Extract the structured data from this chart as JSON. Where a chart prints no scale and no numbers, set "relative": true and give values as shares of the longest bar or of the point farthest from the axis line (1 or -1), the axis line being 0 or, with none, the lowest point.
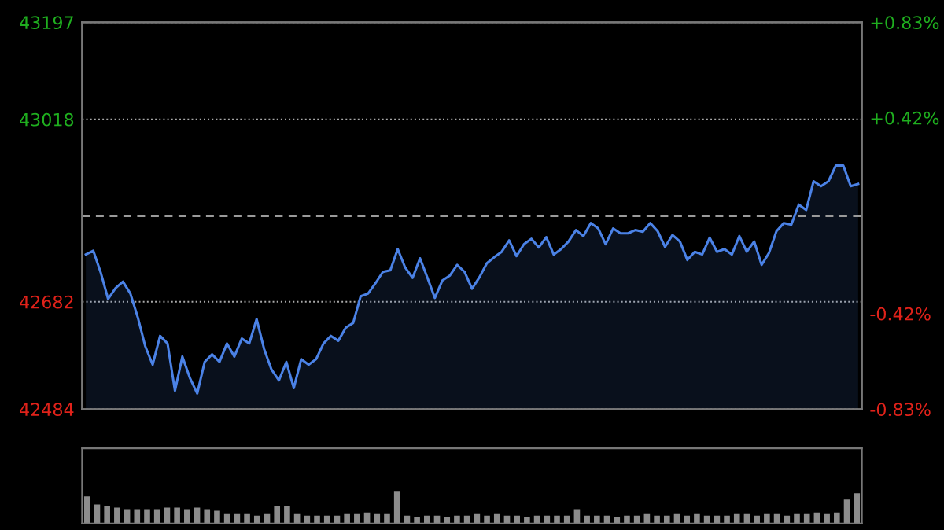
{
  "chart_data": [
    {
      "type": "area",
      "categories": [
        null,
        null,
        null,
        null,
        null,
        null,
        null,
        null,
        null,
        null,
        null,
        null,
        null,
        null,
        null,
        null,
        null,
        null,
        null,
        null,
        null,
        null,
        null,
        null,
        null,
        null,
        null,
        null,
        null,
        null,
        null,
        null,
        null,
        null,
        null,
        null,
        null,
        null,
        null,
        null,
        null,
        null,
        null,
        null,
        null,
        null,
        null,
        null,
        null,
        null,
        null,
        null,
        null,
        null,
        null,
        null,
        null,
        null,
        null,
        null,
        null,
        null,
        null,
        null,
        null,
        null,
        null,
        null,
        null,
        null,
        null,
        null,
        null,
        null,
        null,
        null,
        null,
        null,
        null,
        null,
        null,
        null,
        null,
        null,
        null,
        null,
        null,
        null,
        null,
        null,
        null,
        null,
        null,
        null,
        null,
        null,
        null,
        null,
        null,
        null,
        null,
        null,
        null,
        null,
        null
      ],
      "series": [
        {
          "color": "#4b82e6",
          "values": [
            42769,
            42776,
            42736,
            42687,
            42707,
            42719,
            42697,
            42653,
            42600,
            42566,
            42619,
            42605,
            42518,
            42581,
            42542,
            42513,
            42571,
            42585,
            42571,
            42605,
            42581,
            42614,
            42605,
            42650,
            42595,
            42557,
            42537,
            42571,
            42523,
            42576,
            42566,
            42576,
            42605,
            42619,
            42610,
            42634,
            42643,
            42692,
            42697,
            42716,
            42737,
            42740,
            42779,
            42745,
            42726,
            42762,
            42726,
            42689,
            42721,
            42730,
            42750,
            42737,
            42706,
            42727,
            42753,
            42764,
            42774,
            42795,
            42766,
            42788,
            42798,
            42782,
            42801,
            42769,
            42779,
            42793,
            42814,
            42803,
            42827,
            42817,
            42788,
            42817,
            42808,
            42808,
            42814,
            42811,
            42827,
            42812,
            42783,
            42805,
            42793,
            42759,
            42774,
            42769,
            42800,
            42774,
            42779,
            42769,
            42803,
            42774,
            42793,
            42750,
            42772,
            42812,
            42827,
            42824,
            42861,
            42851,
            42904,
            42895,
            42904,
            42933,
            42933,
            42895,
            42899
          ]
        }
      ],
      "ylim": [
        42484,
        43197
      ],
      "yticks": [
        42484,
        42682,
        43018,
        43197
      ],
      "y2lim": [
        -0.83,
        0.83
      ],
      "y2ticks": [
        {
          "value": -0.83,
          "label": "-0.83%"
        },
        {
          "value": -0.42,
          "label": "-0.42%"
        },
        {
          "value": 0.42,
          "label": "+0.42%"
        },
        {
          "value": 0.83,
          "label": "+0.83%"
        }
      ],
      "ref_lines": [
        {
          "axis": "y",
          "value": 42840,
          "color": "#9a9a9a",
          "line_style": "dashed"
        }
      ],
      "grid": "y"
    },
    {
      "type": "bar",
      "relative": true,
      "categories": [
        null,
        null,
        null,
        null,
        null,
        null,
        null,
        null,
        null,
        null,
        null,
        null,
        null,
        null,
        null,
        null,
        null,
        null,
        null,
        null,
        null,
        null,
        null,
        null,
        null,
        null,
        null,
        null,
        null,
        null,
        null,
        null,
        null,
        null,
        null,
        null,
        null,
        null,
        null,
        null,
        null,
        null,
        null,
        null,
        null,
        null,
        null,
        null,
        null,
        null,
        null,
        null,
        null,
        null,
        null,
        null,
        null,
        null,
        null,
        null,
        null,
        null,
        null,
        null,
        null,
        null,
        null,
        null,
        null,
        null,
        null,
        null,
        null,
        null,
        null,
        null,
        null,
        null
      ],
      "series": [
        {
          "color": "#8c8c8c",
          "values": [
            0.85,
            0.6,
            0.55,
            0.5,
            0.45,
            0.45,
            0.45,
            0.45,
            0.5,
            0.5,
            0.45,
            0.5,
            0.45,
            0.4,
            0.3,
            0.3,
            0.3,
            0.25,
            0.3,
            0.55,
            0.55,
            0.3,
            0.25,
            0.25,
            0.25,
            0.25,
            0.3,
            0.3,
            0.35,
            0.3,
            0.3,
            1,
            0.25,
            0.2,
            0.25,
            0.25,
            0.2,
            0.25,
            0.25,
            0.3,
            0.25,
            0.3,
            0.25,
            0.25,
            0.2,
            0.25,
            0.25,
            0.25,
            0.25,
            0.45,
            0.25,
            0.25,
            0.25,
            0.2,
            0.25,
            0.25,
            0.3,
            0.25,
            0.25,
            0.3,
            0.25,
            0.3,
            0.25,
            0.25,
            0.25,
            0.3,
            0.3,
            0.25,
            0.3,
            0.3,
            0.25,
            0.3,
            0.3,
            0.35,
            0.3,
            0.35,
            0.75,
            0.95
          ]
        }
      ]
    }
  ]
}
